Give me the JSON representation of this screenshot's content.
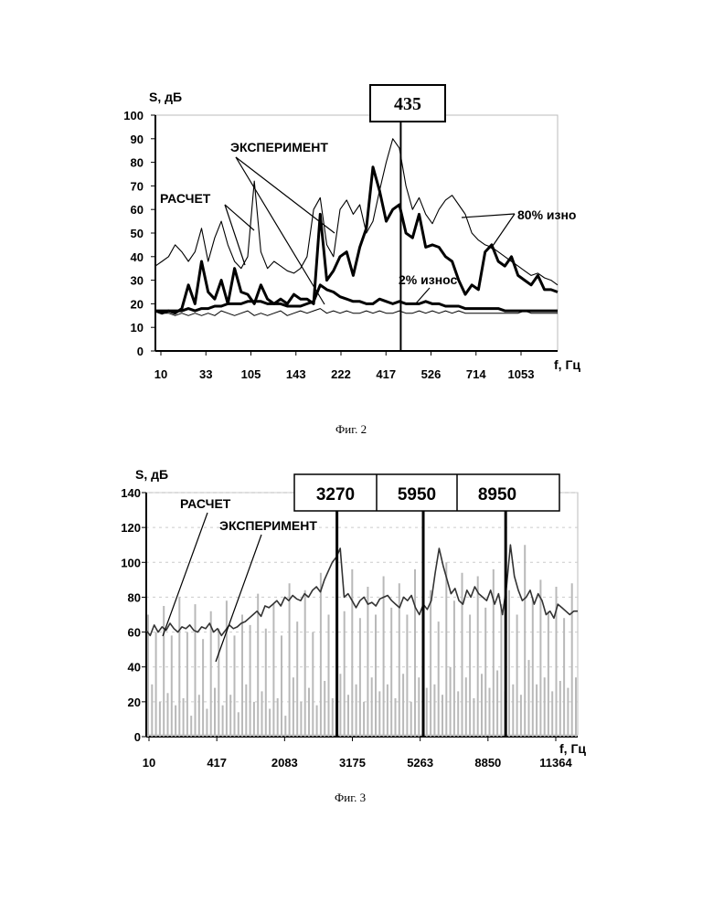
{
  "figure_captions": {
    "fig2": "Фиг. 2",
    "fig3": "Фиг. 3"
  },
  "chart_data": [
    {
      "type": "line",
      "ylabel": "S, дБ",
      "xlabel": "f, Гц",
      "ylim": [
        0,
        100
      ],
      "y_ticks": [
        "0",
        "10",
        "20",
        "30",
        "40",
        "50",
        "60",
        "70",
        "80",
        "90",
        "100"
      ],
      "x_tick_labels": [
        "10",
        "33",
        "105",
        "143",
        "222",
        "417",
        "526",
        "714",
        "1053"
      ],
      "marker": {
        "label": "435",
        "position": 0.61
      },
      "annotations": {
        "experiment": "ЭКСПЕРИМЕНТ",
        "calc": "РАСЧЕТ",
        "wear80": "80% изно",
        "wear2": "2% износ"
      },
      "series": [
        {
          "values": [
            36,
            38,
            40,
            45,
            42,
            38,
            42,
            52,
            38,
            48,
            55,
            45,
            38,
            35,
            40,
            72,
            42,
            35,
            38,
            36,
            34,
            33,
            35,
            40,
            60,
            65,
            45,
            40,
            60,
            64,
            58,
            62,
            50,
            55,
            68,
            80,
            90,
            86,
            70,
            60,
            65,
            58,
            54,
            60,
            64,
            66,
            62,
            58,
            50,
            47,
            45,
            44,
            42,
            40,
            38,
            36,
            34,
            32,
            33,
            31,
            30,
            28
          ]
        },
        {
          "values": [
            17,
            17,
            17,
            16,
            18,
            28,
            20,
            38,
            25,
            22,
            30,
            20,
            35,
            25,
            24,
            20,
            28,
            22,
            20,
            22,
            20,
            24,
            22,
            22,
            20,
            58,
            30,
            34,
            40,
            42,
            32,
            44,
            52,
            78,
            68,
            55,
            60,
            62,
            50,
            48,
            58,
            44,
            45,
            44,
            40,
            38,
            30,
            24,
            28,
            26,
            42,
            45,
            38,
            36,
            40,
            32,
            30,
            28,
            32,
            26,
            26,
            25
          ]
        },
        {
          "values": [
            17,
            16,
            17,
            17,
            17,
            18,
            17,
            18,
            18,
            19,
            19,
            20,
            20,
            20,
            21,
            21,
            21,
            20,
            20,
            20,
            19,
            19,
            19,
            20,
            21,
            28,
            26,
            25,
            23,
            22,
            21,
            21,
            20,
            20,
            22,
            21,
            20,
            21,
            20,
            20,
            20,
            21,
            20,
            20,
            19,
            19,
            19,
            18,
            18,
            18,
            18,
            18,
            18,
            17,
            17,
            17,
            17,
            17,
            17,
            17,
            17,
            17
          ]
        },
        {
          "values": [
            17,
            16,
            16,
            15,
            16,
            15,
            16,
            15,
            16,
            15,
            17,
            16,
            15,
            16,
            17,
            15,
            16,
            15,
            16,
            17,
            15,
            16,
            17,
            16,
            17,
            18,
            16,
            17,
            16,
            17,
            16,
            16,
            17,
            16,
            17,
            16,
            16,
            17,
            16,
            16,
            17,
            16,
            17,
            16,
            17,
            16,
            17,
            16,
            16,
            16,
            16,
            16,
            16,
            16,
            16,
            16,
            17,
            16,
            16,
            16,
            16,
            16
          ]
        }
      ]
    },
    {
      "type": "line",
      "ylabel": "S, дБ",
      "xlabel": "f, Гц",
      "ylim": [
        0,
        140
      ],
      "y_ticks": [
        "0",
        "20",
        "40",
        "60",
        "80",
        "100",
        "120",
        "140"
      ],
      "x_tick_labels": [
        "10",
        "417",
        "2083",
        "3175",
        "5263",
        "8850",
        "11364"
      ],
      "marker_labels": [
        "3270",
        "5950",
        "8950"
      ],
      "marker_positions": [
        0.442,
        0.642,
        0.833
      ],
      "annotations": {
        "calc": "РАСЧЕТ",
        "experiment": "ЭКСПЕРИМЕНТ"
      },
      "series": [
        {
          "values": [
            61,
            58,
            64,
            60,
            63,
            61,
            65,
            62,
            60,
            63,
            62,
            64,
            61,
            60,
            63,
            62,
            65,
            60,
            62,
            58,
            61,
            64,
            62,
            63,
            65,
            66,
            68,
            70,
            72,
            69,
            75,
            74,
            76,
            78,
            75,
            80,
            78,
            81,
            79,
            78,
            82,
            80,
            84,
            86,
            83,
            90,
            95,
            100,
            103,
            108,
            80,
            82,
            78,
            74,
            78,
            80,
            76,
            77,
            75,
            79,
            80,
            81,
            78,
            76,
            74,
            80,
            78,
            81,
            74,
            70,
            76,
            73,
            78,
            94,
            108,
            98,
            90,
            82,
            85,
            78,
            76,
            84,
            80,
            86,
            82,
            80,
            78,
            84,
            76,
            82,
            70,
            86,
            110,
            92,
            84,
            78,
            80,
            84,
            76,
            82,
            78,
            70,
            72,
            68,
            76,
            74,
            72,
            70,
            72,
            72
          ]
        },
        {
          "values": [
            70,
            30,
            60,
            20,
            75,
            25,
            58,
            18,
            80,
            22,
            60,
            12,
            76,
            24,
            56,
            16,
            72,
            28,
            62,
            18,
            78,
            24,
            58,
            14,
            70,
            30,
            64,
            20,
            82,
            26,
            62,
            16,
            76,
            22,
            58,
            12,
            88,
            34,
            66,
            20,
            84,
            28,
            60,
            18,
            94,
            32,
            70,
            22,
            90,
            36,
            72,
            24,
            96,
            30,
            68,
            20,
            86,
            34,
            70,
            26,
            92,
            30,
            74,
            22,
            88,
            36,
            70,
            20,
            96,
            34,
            72,
            28,
            84,
            30,
            66,
            24,
            100,
            40,
            78,
            26,
            94,
            34,
            70,
            22,
            92,
            36,
            74,
            28,
            96,
            38,
            76,
            26,
            84,
            30,
            70,
            24,
            110,
            44,
            80,
            30,
            90,
            34,
            72,
            26,
            86,
            32,
            68,
            28,
            88,
            34
          ]
        }
      ]
    }
  ]
}
